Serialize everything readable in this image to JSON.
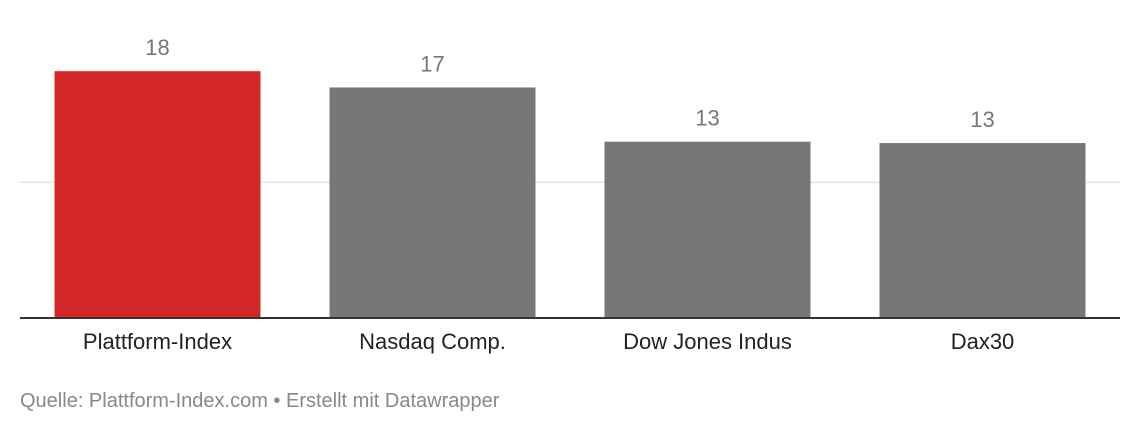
{
  "chart_data": {
    "type": "bar",
    "categories": [
      "Plattform-Index",
      "Nasdaq Comp.",
      "Dow Jones Indus",
      "Dax30"
    ],
    "values": [
      18.2,
      17.0,
      13.0,
      12.9
    ],
    "value_labels": [
      "18",
      "17",
      "13",
      "13"
    ],
    "ylim": [
      0,
      20.5
    ],
    "gridlines": [
      10
    ],
    "highlight_color": "#d42828",
    "bar_color": "#777777",
    "title": "",
    "xlabel": "",
    "ylabel": ""
  },
  "footer": {
    "source": "Quelle: Plattform-Index.com • Erstellt mit Datawrapper"
  }
}
